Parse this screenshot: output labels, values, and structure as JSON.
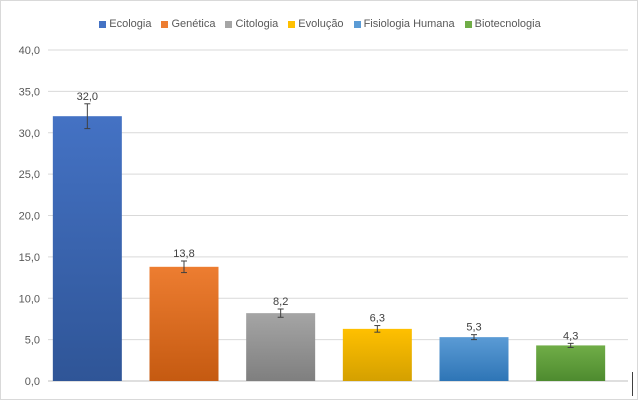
{
  "chart_data": {
    "type": "bar",
    "title": "",
    "xlabel": "",
    "ylabel": "",
    "ylim": [
      0,
      40
    ],
    "yticks": [
      0,
      5,
      10,
      15,
      20,
      25,
      30,
      35,
      40
    ],
    "ytick_labels": [
      "0,0",
      "5,0",
      "10,0",
      "15,0",
      "20,0",
      "25,0",
      "30,0",
      "35,0",
      "40,0"
    ],
    "grid": true,
    "legend_position": "top",
    "categories": [
      "Ecologia",
      "Genética",
      "Citologia",
      "Evolução",
      "Fisiologia Humana",
      "Biotecnologia"
    ],
    "values": [
      32.0,
      13.8,
      8.2,
      6.3,
      5.3,
      4.3
    ],
    "value_labels": [
      "32,0",
      "13,8",
      "8,2",
      "6,3",
      "5,3",
      "4,3"
    ],
    "error": [
      1.5,
      0.7,
      0.5,
      0.4,
      0.3,
      0.25
    ],
    "colors": [
      "#4472c4",
      "#ed7d31",
      "#a5a5a5",
      "#ffc000",
      "#5b9bd5",
      "#70ad47"
    ],
    "colors_dark": [
      "#2f5597",
      "#c55a11",
      "#7f7f7f",
      "#d4a000",
      "#2e75b6",
      "#4e8b2f"
    ]
  }
}
